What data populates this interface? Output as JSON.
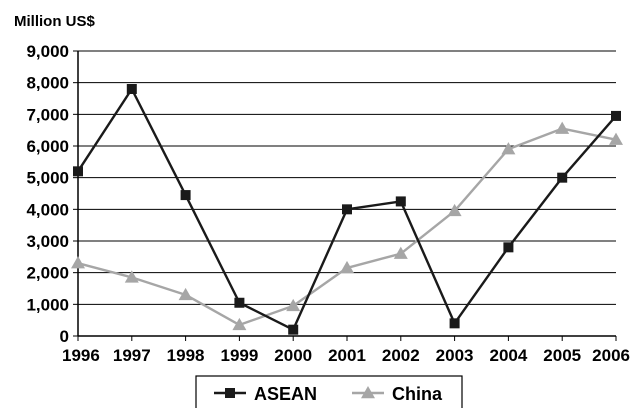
{
  "chart_data": {
    "type": "line",
    "title": "",
    "ylabel": "Million US$",
    "xlabel": "",
    "x": [
      "1996",
      "1997",
      "1998",
      "1999",
      "2000",
      "2001",
      "2002",
      "2003",
      "2004",
      "2005",
      "2006"
    ],
    "ylim": [
      0,
      9000
    ],
    "yticks": [
      "0",
      "1,000",
      "2,000",
      "3,000",
      "4,000",
      "5,000",
      "6,000",
      "7,000",
      "8,000",
      "9,000"
    ],
    "grid": true,
    "legend_position": "bottom",
    "series": [
      {
        "name": "ASEAN",
        "marker": "square",
        "color": "#1a1a1a",
        "values": [
          5200,
          7800,
          4450,
          1050,
          200,
          4000,
          4250,
          400,
          2800,
          5000,
          6950
        ]
      },
      {
        "name": "China",
        "marker": "triangle",
        "color": "#a6a6a6",
        "values": [
          2300,
          1850,
          1300,
          350,
          950,
          2150,
          2600,
          3950,
          5900,
          6550,
          6200
        ]
      }
    ]
  }
}
